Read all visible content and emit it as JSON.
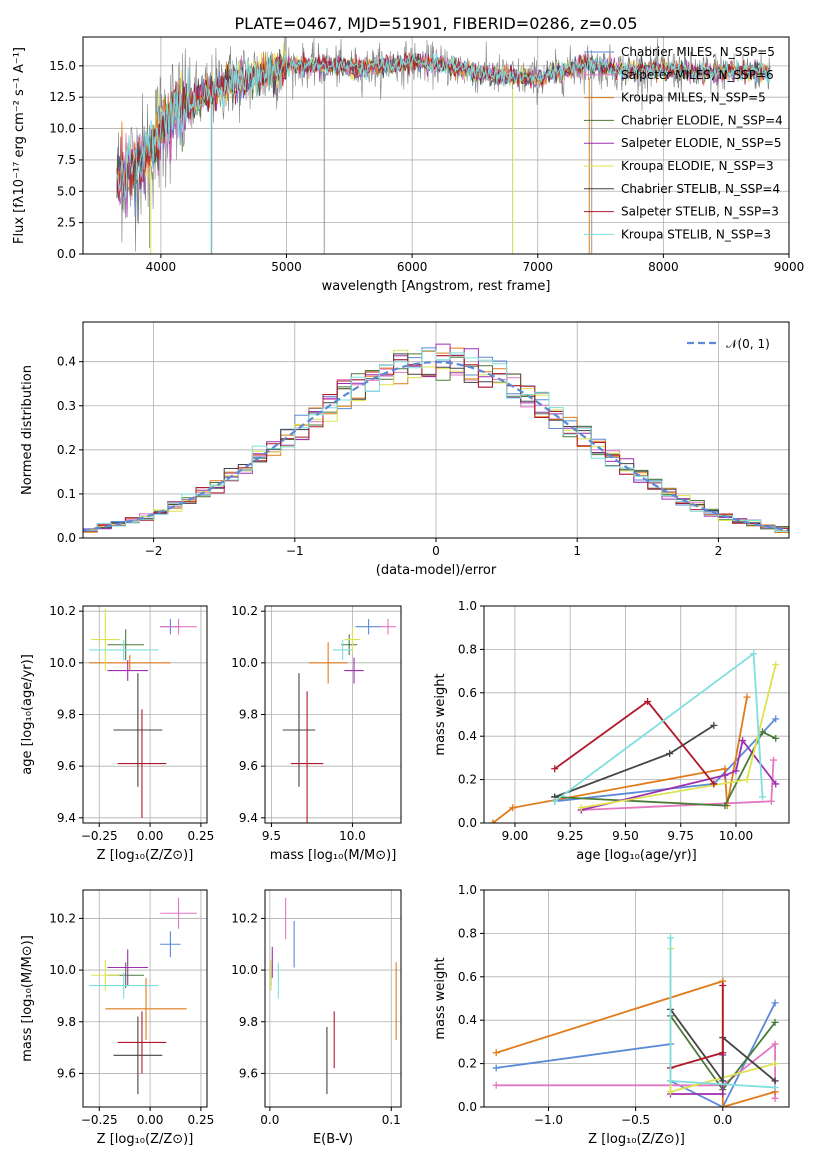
{
  "chart_data": [
    {
      "id": "spectrum",
      "type": "line",
      "title": "PLATE=0467, MJD=51901, FIBERID=0286, z=0.05",
      "xlabel": "wavelength [Angstrom, rest frame]",
      "ylabel": "Flux [fλ10⁻¹⁷ erg cm⁻² s⁻¹ A⁻¹]",
      "xlim": [
        3380,
        9000
      ],
      "ylim": [
        0,
        17.3
      ],
      "xticks": [
        4000,
        5000,
        6000,
        7000,
        8000,
        9000
      ],
      "yticks": [
        0.0,
        2.5,
        5.0,
        7.5,
        10.0,
        12.5,
        15.0
      ],
      "x_range": [
        3650,
        8850
      ],
      "legend_position": "right",
      "series": [
        {
          "name": "Chabrier MILES, N_SSP=5",
          "color": "#5b8ad6"
        },
        {
          "name": "Salpeter MILES, N_SSP=6",
          "color": "#e377c2"
        },
        {
          "name": "Kroupa MILES, N_SSP=5",
          "color": "#e07b1a"
        },
        {
          "name": "Chabrier ELODIE, N_SSP=4",
          "color": "#4a7a3a"
        },
        {
          "name": "Salpeter ELODIE, N_SSP=5",
          "color": "#9e2fb0"
        },
        {
          "name": "Kroupa ELODIE, N_SSP=3",
          "color": "#dde352"
        },
        {
          "name": "Chabrier STELIB, N_SSP=4",
          "color": "#444444"
        },
        {
          "name": "Salpeter STELIB, N_SSP=3",
          "color": "#b2182b"
        },
        {
          "name": "Kroupa STELIB, N_SSP=3",
          "color": "#7fdede"
        }
      ],
      "continuum": {
        "x": [
          3650,
          3800,
          3900,
          4000,
          4100,
          4300,
          4500,
          4800,
          5000,
          5300,
          5600,
          6000,
          6300,
          6600,
          7000,
          7400,
          7700,
          8000,
          8300,
          8600,
          8850
        ],
        "y": [
          6.0,
          7.0,
          8.0,
          10.0,
          11.3,
          12.3,
          13.6,
          14.3,
          15.1,
          15.0,
          14.8,
          15.3,
          15.0,
          14.3,
          14.0,
          15.1,
          14.6,
          14.7,
          14.4,
          14.6,
          14.4
        ]
      }
    },
    {
      "id": "residuals",
      "type": "histogram",
      "xlabel": "(data-model)/error",
      "ylabel": "Normed distribution",
      "xlim": [
        -2.5,
        2.5
      ],
      "ylim": [
        0,
        0.49
      ],
      "xticks": [
        -2,
        -1,
        0,
        1,
        2
      ],
      "yticks": [
        0.0,
        0.1,
        0.2,
        0.3,
        0.4
      ],
      "bin_width": 0.1,
      "grid": true,
      "legend_position": "top-right",
      "reference": {
        "name": "𝒩(0, 1)",
        "color": "#5b8ad6",
        "mean": 0,
        "sigma": 1
      }
    },
    {
      "id": "age-vs-Z",
      "type": "scatter",
      "xlabel": "Z [log₁₀(Z/Z⊙)]",
      "ylabel": "age  [log₁₀(age/yr)]",
      "xlim": [
        -0.33,
        0.28
      ],
      "ylim": [
        9.38,
        10.22
      ],
      "xticks": [
        -0.25,
        0.0,
        0.25
      ],
      "yticks": [
        9.4,
        9.6,
        9.8,
        10.0,
        10.2
      ],
      "points": [
        {
          "x": 0.1,
          "y": 10.14,
          "xerr": 0.05,
          "yerr": 0.03,
          "color": "#5b8ad6"
        },
        {
          "x": 0.14,
          "y": 10.14,
          "xerr": 0.09,
          "yerr": 0.03,
          "color": "#e377c2"
        },
        {
          "x": -0.1,
          "y": 10.0,
          "xerr": 0.2,
          "yerr": 0.03,
          "color": "#e07b1a"
        },
        {
          "x": -0.12,
          "y": 10.07,
          "xerr": 0.09,
          "yerr": 0.06,
          "color": "#4a7a3a"
        },
        {
          "x": -0.11,
          "y": 9.97,
          "xerr": 0.1,
          "yerr": 0.04,
          "color": "#9e2fb0"
        },
        {
          "x": -0.22,
          "y": 10.09,
          "xerr": 0.07,
          "yerr": 0.12,
          "color": "#dde352"
        },
        {
          "x": -0.06,
          "y": 9.74,
          "xerr": 0.12,
          "yerr": 0.22,
          "color": "#444444"
        },
        {
          "x": -0.04,
          "y": 9.61,
          "xerr": 0.12,
          "yerr": 0.21,
          "color": "#b2182b"
        },
        {
          "x": -0.13,
          "y": 10.05,
          "xerr": 0.17,
          "yerr": 0.04,
          "color": "#7fdede"
        }
      ]
    },
    {
      "id": "age-vs-mass",
      "type": "scatter",
      "xlabel": "mass [log₁₀(M/M⊙)]",
      "ylabel": "",
      "xlim": [
        9.46,
        10.3
      ],
      "ylim": [
        9.38,
        10.22
      ],
      "xticks": [
        9.5,
        10.0
      ],
      "yticks": [
        9.4,
        9.6,
        9.8,
        10.0,
        10.2
      ],
      "points": [
        {
          "x": 10.1,
          "y": 10.14,
          "xerr": 0.08,
          "yerr": 0.03,
          "color": "#5b8ad6"
        },
        {
          "x": 10.22,
          "y": 10.14,
          "xerr": 0.05,
          "yerr": 0.03,
          "color": "#e377c2"
        },
        {
          "x": 9.85,
          "y": 10.0,
          "xerr": 0.12,
          "yerr": 0.08,
          "color": "#e07b1a"
        },
        {
          "x": 9.98,
          "y": 10.07,
          "xerr": 0.05,
          "yerr": 0.04,
          "color": "#4a7a3a"
        },
        {
          "x": 10.01,
          "y": 9.97,
          "xerr": 0.06,
          "yerr": 0.05,
          "color": "#9e2fb0"
        },
        {
          "x": 10.0,
          "y": 10.09,
          "xerr": 0.05,
          "yerr": 0.05,
          "color": "#dde352"
        },
        {
          "x": 9.67,
          "y": 9.74,
          "xerr": 0.1,
          "yerr": 0.22,
          "color": "#444444"
        },
        {
          "x": 9.72,
          "y": 9.61,
          "xerr": 0.1,
          "yerr": 0.28,
          "color": "#b2182b"
        },
        {
          "x": 9.94,
          "y": 10.05,
          "xerr": 0.06,
          "yerr": 0.04,
          "color": "#7fdede"
        }
      ]
    },
    {
      "id": "weight-vs-age",
      "type": "line",
      "xlabel": "age  [log₁₀(age/yr)]",
      "ylabel": "mass weight",
      "xlim": [
        8.86,
        10.24
      ],
      "ylim": [
        0,
        1.0
      ],
      "xticks": [
        9.0,
        9.25,
        9.5,
        9.75,
        10.0
      ],
      "yticks": [
        0.0,
        0.2,
        0.4,
        0.6,
        0.8,
        1.0
      ],
      "grid": true,
      "series": [
        {
          "color": "#5b8ad6",
          "points": [
            [
              9.18,
              0.1
            ],
            [
              9.9,
              0.18
            ],
            [
              10.18,
              0.48
            ]
          ]
        },
        {
          "color": "#e377c2",
          "points": [
            [
              9.3,
              0.06
            ],
            [
              10.16,
              0.1
            ],
            [
              10.17,
              0.29
            ]
          ]
        },
        {
          "color": "#e07b1a",
          "points": [
            [
              8.9,
              0.0
            ],
            [
              8.99,
              0.07
            ],
            [
              9.95,
              0.25
            ],
            [
              9.96,
              0.08
            ],
            [
              10.05,
              0.58
            ]
          ]
        },
        {
          "color": "#4a7a3a",
          "points": [
            [
              9.18,
              0.12
            ],
            [
              9.95,
              0.08
            ],
            [
              10.12,
              0.42
            ],
            [
              10.18,
              0.39
            ]
          ]
        },
        {
          "color": "#9e2fb0",
          "points": [
            [
              9.3,
              0.06
            ],
            [
              9.95,
              0.22
            ],
            [
              10.0,
              0.24
            ],
            [
              10.03,
              0.38
            ],
            [
              10.18,
              0.18
            ]
          ]
        },
        {
          "color": "#dde352",
          "points": [
            [
              9.3,
              0.07
            ],
            [
              10.05,
              0.2
            ],
            [
              10.18,
              0.73
            ]
          ]
        },
        {
          "color": "#444444",
          "points": [
            [
              9.18,
              0.12
            ],
            [
              9.7,
              0.32
            ],
            [
              9.9,
              0.45
            ]
          ]
        },
        {
          "color": "#b2182b",
          "points": [
            [
              9.18,
              0.25
            ],
            [
              9.6,
              0.56
            ],
            [
              9.9,
              0.18
            ]
          ]
        },
        {
          "color": "#7fdede",
          "points": [
            [
              9.18,
              0.1
            ],
            [
              10.08,
              0.78
            ],
            [
              10.12,
              0.12
            ]
          ]
        }
      ]
    },
    {
      "id": "mass-vs-Z",
      "type": "scatter",
      "xlabel": "Z [log₁₀(Z/Z⊙)]",
      "ylabel": "mass [log₁₀(M/M⊙)]",
      "xlim": [
        -0.33,
        0.28
      ],
      "ylim": [
        9.47,
        10.31
      ],
      "xticks": [
        -0.25,
        0.0,
        0.25
      ],
      "yticks": [
        9.6,
        9.8,
        10.0,
        10.2
      ],
      "points": [
        {
          "x": 0.1,
          "y": 10.1,
          "xerr": 0.05,
          "yerr": 0.05,
          "color": "#5b8ad6"
        },
        {
          "x": 0.14,
          "y": 10.22,
          "xerr": 0.09,
          "yerr": 0.06,
          "color": "#e377c2"
        },
        {
          "x": -0.02,
          "y": 9.85,
          "xerr": 0.2,
          "yerr": 0.12,
          "color": "#e07b1a"
        },
        {
          "x": -0.12,
          "y": 9.98,
          "xerr": 0.09,
          "yerr": 0.05,
          "color": "#4a7a3a"
        },
        {
          "x": -0.11,
          "y": 10.01,
          "xerr": 0.1,
          "yerr": 0.07,
          "color": "#9e2fb0"
        },
        {
          "x": -0.22,
          "y": 9.98,
          "xerr": 0.07,
          "yerr": 0.06,
          "color": "#dde352"
        },
        {
          "x": -0.06,
          "y": 9.67,
          "xerr": 0.12,
          "yerr": 0.15,
          "color": "#444444"
        },
        {
          "x": -0.04,
          "y": 9.72,
          "xerr": 0.12,
          "yerr": 0.12,
          "color": "#b2182b"
        },
        {
          "x": -0.13,
          "y": 9.94,
          "xerr": 0.17,
          "yerr": 0.05,
          "color": "#7fdede"
        }
      ]
    },
    {
      "id": "mass-vs-EBV",
      "type": "scatter",
      "xlabel": "E(B-V)",
      "ylabel": "",
      "xlim": [
        -0.004,
        0.108
      ],
      "ylim": [
        9.47,
        10.31
      ],
      "xticks": [
        0.0,
        0.1
      ],
      "yticks": [
        9.6,
        9.8,
        10.0,
        10.2
      ],
      "points": [
        {
          "x": 0.02,
          "y": 10.1,
          "xerr": 0,
          "yerr": 0.09,
          "color": "#5b8ad6"
        },
        {
          "x": 0.013,
          "y": 10.2,
          "xerr": 0,
          "yerr": 0.08,
          "color": "#e377c2"
        },
        {
          "x": 0.104,
          "y": 9.88,
          "xerr": 0,
          "yerr": 0.15,
          "color": "#e07b1a"
        },
        {
          "x": 0.001,
          "y": 9.98,
          "xerr": 0,
          "yerr": 0.04,
          "color": "#4a7a3a"
        },
        {
          "x": 0.002,
          "y": 10.03,
          "xerr": 0,
          "yerr": 0.06,
          "color": "#9e2fb0"
        },
        {
          "x": 0.001,
          "y": 9.98,
          "xerr": 0,
          "yerr": 0.06,
          "color": "#dde352"
        },
        {
          "x": 0.047,
          "y": 9.65,
          "xerr": 0,
          "yerr": 0.13,
          "color": "#444444"
        },
        {
          "x": 0.053,
          "y": 9.73,
          "xerr": 0,
          "yerr": 0.11,
          "color": "#b2182b"
        },
        {
          "x": 0.007,
          "y": 9.96,
          "xerr": 0,
          "yerr": 0.07,
          "color": "#7fdede"
        }
      ]
    },
    {
      "id": "weight-vs-Z",
      "type": "line",
      "xlabel": "Z [log₁₀(Z/Z⊙)]",
      "ylabel": "mass weight",
      "xlim": [
        -1.37,
        0.38
      ],
      "ylim": [
        0,
        1.0
      ],
      "xticks": [
        -1.0,
        -0.5,
        0.0
      ],
      "yticks": [
        0.0,
        0.2,
        0.4,
        0.6,
        0.8,
        1.0
      ],
      "grid": true,
      "series": [
        {
          "color": "#5b8ad6",
          "points": [
            [
              -1.3,
              0.18
            ],
            [
              -0.3,
              0.29
            ],
            [
              -0.3,
              0.12
            ],
            [
              0.0,
              0.0
            ],
            [
              0.3,
              0.48
            ]
          ]
        },
        {
          "color": "#e377c2",
          "points": [
            [
              -1.3,
              0.1
            ],
            [
              0.0,
              0.1
            ],
            [
              0.3,
              0.29
            ],
            [
              0.3,
              0.04
            ]
          ]
        },
        {
          "color": "#e07b1a",
          "points": [
            [
              -1.3,
              0.25
            ],
            [
              0.0,
              0.58
            ],
            [
              0.0,
              0.0
            ],
            [
              0.3,
              0.07
            ]
          ]
        },
        {
          "color": "#4a7a3a",
          "points": [
            [
              -0.3,
              0.42
            ],
            [
              0.0,
              0.08
            ],
            [
              0.3,
              0.39
            ]
          ]
        },
        {
          "color": "#9e2fb0",
          "points": [
            [
              -0.3,
              0.06
            ],
            [
              0.0,
              0.06
            ],
            [
              0.0,
              0.24
            ]
          ]
        },
        {
          "color": "#dde352",
          "points": [
            [
              -0.3,
              0.73
            ],
            [
              -0.3,
              0.07
            ],
            [
              0.3,
              0.2
            ]
          ]
        },
        {
          "color": "#444444",
          "points": [
            [
              -0.3,
              0.45
            ],
            [
              0.0,
              0.12
            ],
            [
              0.0,
              0.32
            ],
            [
              0.3,
              0.12
            ]
          ]
        },
        {
          "color": "#b2182b",
          "points": [
            [
              -0.3,
              0.18
            ],
            [
              0.0,
              0.25
            ],
            [
              0.0,
              0.56
            ]
          ]
        },
        {
          "color": "#7fdede",
          "points": [
            [
              -0.3,
              0.78
            ],
            [
              -0.3,
              0.12
            ],
            [
              0.3,
              0.09
            ]
          ]
        }
      ]
    }
  ]
}
